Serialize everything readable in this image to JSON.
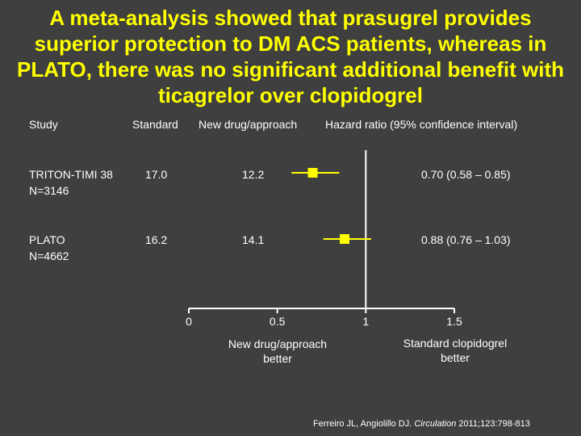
{
  "title": "A meta-analysis showed that prasugrel provides superior protection to DM ACS patients, whereas in PLATO, there was no significant additional benefit with ticagrelor over clopidogrel",
  "headers": {
    "study": "Study",
    "standard": "Standard",
    "new_drug": "New drug/approach",
    "hazard": "Hazard ratio (95% confidence interval)"
  },
  "notes": {
    "left": "New drug/approach better",
    "right": "Standard clopidogrel better"
  },
  "citation": {
    "authors": "Ferreiro JL, Angiolillo DJ.",
    "journal": "Circulation",
    "ref": "2011;123:798-813"
  },
  "chart_data": {
    "type": "forest",
    "xlim": [
      0,
      1.5
    ],
    "xticks": [
      0,
      0.5,
      1,
      1.5
    ],
    "xtick_labels": [
      "0",
      "0.5",
      "1",
      "1.5"
    ],
    "reference_line": 1,
    "marker_color": "#ffff00",
    "rows": [
      {
        "study": "TRITON-TIMI 38",
        "n": "N=3146",
        "standard": "17.0",
        "new_drug": "12.2",
        "hr": 0.7,
        "lo": 0.58,
        "hi": 0.85,
        "hr_text": "0.70 (0.58 – 0.85)"
      },
      {
        "study": "PLATO",
        "n": "N=4662",
        "standard": "16.2",
        "new_drug": "14.1",
        "hr": 0.88,
        "lo": 0.76,
        "hi": 1.03,
        "hr_text": "0.88 (0.76 – 1.03)"
      }
    ]
  }
}
